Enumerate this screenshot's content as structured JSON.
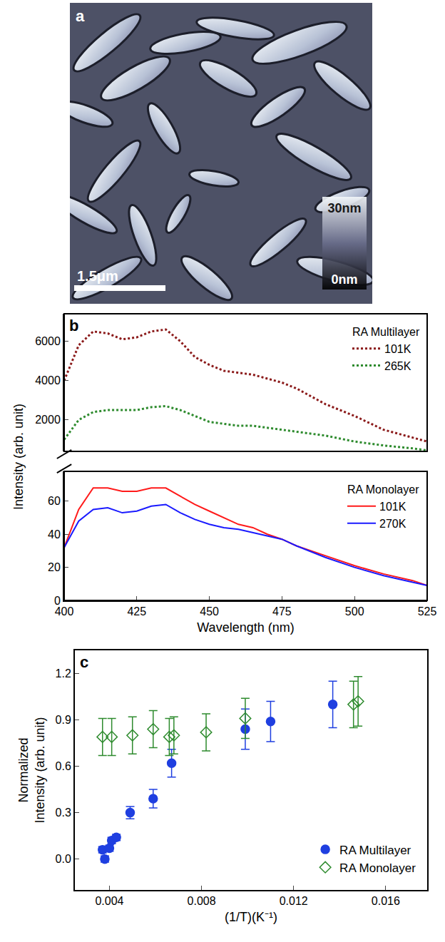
{
  "chart_data": [
    {
      "panel": "a",
      "type": "image",
      "scale_bar": "1.5μm",
      "colorbar": {
        "range": [
          0,
          30
        ],
        "ticks": [
          {
            "value": 0,
            "label": "0nm"
          },
          {
            "value": 30,
            "label": "30nm"
          }
        ]
      }
    },
    {
      "panel": "b",
      "type": "line",
      "x_label": "Wavelength (nm)",
      "y_label": "Intensity (arb. unit)",
      "x": [
        400,
        405,
        410,
        415,
        420,
        425,
        430,
        435,
        440,
        445,
        450,
        455,
        460,
        465,
        470,
        475,
        480,
        490,
        500,
        510,
        520,
        525
      ],
      "xlim": [
        400,
        525
      ],
      "xticks": [
        400,
        425,
        450,
        475,
        500,
        525
      ],
      "ylim": [
        0,
        78
      ],
      "yticks": [
        0,
        20,
        40,
        60
      ],
      "y2lim": [
        400,
        7400
      ],
      "y2ticks": [
        2000,
        4000,
        6000
      ],
      "legend": "right",
      "series": [
        {
          "name": "101K",
          "group": "RA Multilayer",
          "axis": "y2",
          "color": "#8b1a1a",
          "line_style": "dotted",
          "values": [
            4000,
            5800,
            6500,
            6400,
            6100,
            6200,
            6500,
            6600,
            6000,
            5200,
            4800,
            4500,
            4400,
            4300,
            4100,
            3900,
            3600,
            2800,
            2200,
            1500,
            1100,
            900
          ]
        },
        {
          "name": "265K",
          "group": "RA Multilayer",
          "axis": "y2",
          "color": "#2e8b2e",
          "line_style": "dotted",
          "values": [
            1000,
            2000,
            2400,
            2500,
            2500,
            2500,
            2650,
            2700,
            2500,
            2200,
            1900,
            1800,
            1700,
            1700,
            1600,
            1500,
            1400,
            1200,
            900,
            700,
            550,
            450
          ]
        },
        {
          "name": "101K",
          "group": "RA Monolayer",
          "color": "#ff1a1a",
          "line_style": "solid",
          "values": [
            32,
            55,
            68,
            68,
            66,
            66,
            68,
            68,
            63,
            58,
            54,
            50,
            46,
            44,
            40,
            37,
            33,
            27,
            21,
            16,
            12,
            9
          ]
        },
        {
          "name": "270K",
          "group": "RA Monolayer",
          "color": "#1a1aff",
          "line_style": "solid",
          "values": [
            32,
            48,
            55,
            56,
            53,
            54,
            57,
            58,
            53,
            49,
            46,
            44,
            43,
            41,
            39,
            37,
            33,
            26,
            20,
            15,
            11,
            9
          ]
        }
      ]
    },
    {
      "panel": "c",
      "type": "scatter",
      "x_label": "(1/T)(K⁻¹)",
      "y_label": "Normalized\nIntensity (arb. unit)",
      "xlim": [
        0.0025,
        0.0178
      ],
      "xticks": [
        0.004,
        0.008,
        0.012,
        0.016
      ],
      "ylim": [
        -0.2,
        1.35
      ],
      "yticks": [
        {
          "value": 0,
          "label": "0.0"
        },
        0.3,
        0.6,
        0.9,
        1.2
      ],
      "legend": "lower right",
      "series": [
        {
          "name": "RA Multilayer",
          "color": "#1f3fe0",
          "marker": "circle",
          "x": [
            0.0037,
            0.0038,
            0.004,
            0.0041,
            0.0043,
            0.0049,
            0.0059,
            0.0067,
            0.0099,
            0.011,
            0.0137
          ],
          "values": [
            0.06,
            0.0,
            0.07,
            0.12,
            0.14,
            0.3,
            0.39,
            0.62,
            0.84,
            0.89,
            1.0
          ],
          "errors": [
            0.02,
            0.02,
            0.02,
            0.02,
            0.02,
            0.04,
            0.06,
            0.09,
            0.13,
            0.13,
            0.15
          ]
        },
        {
          "name": "RA Monolayer",
          "color": "#2e8b2e",
          "marker": "diamond-open",
          "x": [
            0.0037,
            0.0041,
            0.005,
            0.0059,
            0.0066,
            0.0068,
            0.0082,
            0.0099,
            0.0146,
            0.0148
          ],
          "values": [
            0.79,
            0.79,
            0.8,
            0.84,
            0.79,
            0.8,
            0.82,
            0.91,
            1.0,
            1.02
          ],
          "errors": [
            0.12,
            0.12,
            0.12,
            0.12,
            0.12,
            0.12,
            0.12,
            0.13,
            0.15,
            0.16
          ]
        }
      ]
    }
  ]
}
